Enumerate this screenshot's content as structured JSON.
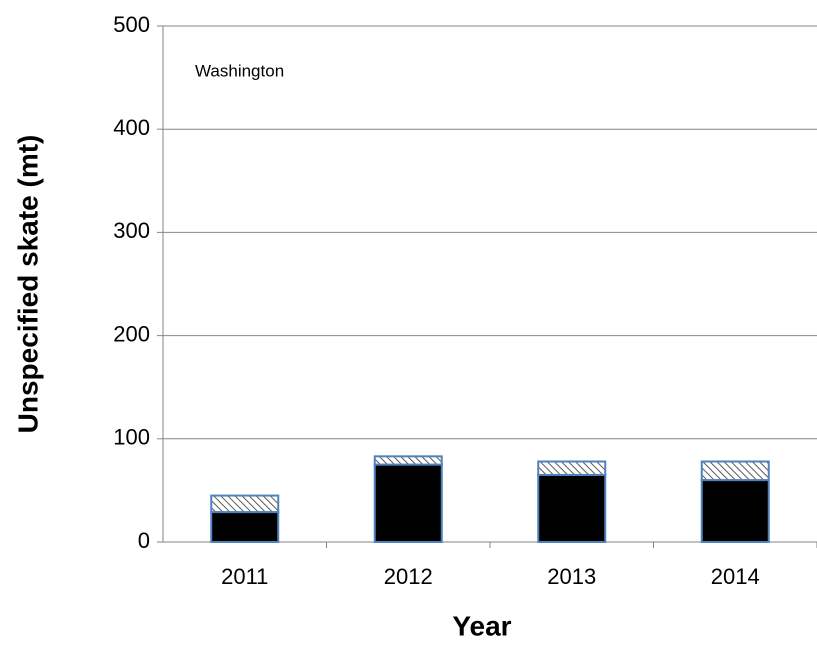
{
  "chart_data": {
    "type": "stacked-bar",
    "ylabel": "Unspecified skate (mt)",
    "xlabel": "Year",
    "annotation": "Washington",
    "categories": [
      "2011",
      "2012",
      "2013",
      "2014"
    ],
    "series": [
      {
        "color": "#000000",
        "values": [
          29,
          75,
          65,
          60
        ]
      },
      {
        "color": "#5a5a5a",
        "hatch": true,
        "values": [
          16,
          8,
          13,
          18
        ]
      }
    ],
    "edgecolor": "#4f81bd",
    "ylim": [
      0,
      500
    ],
    "yticks": [
      0,
      100,
      200,
      300,
      400,
      500
    ],
    "grid": true
  }
}
